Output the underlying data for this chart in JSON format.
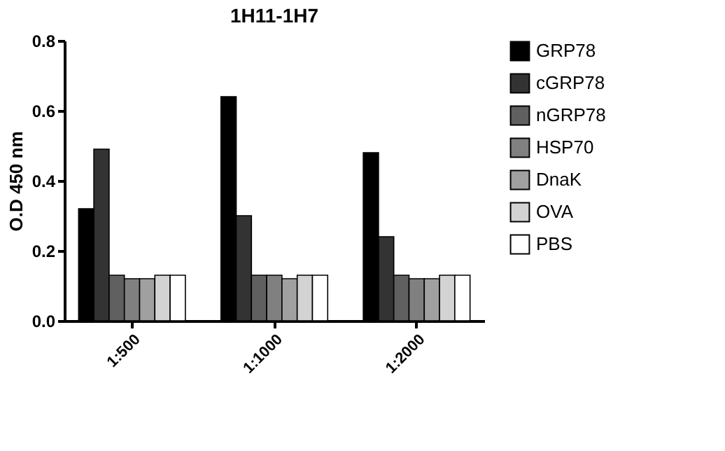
{
  "chart_data": {
    "type": "bar",
    "title": "1H11-1H7",
    "ylabel": "O.D 450 nm",
    "categories": [
      "1:500",
      "1:1000",
      "1:2000"
    ],
    "series": [
      {
        "name": "GRP78",
        "color": "#000000",
        "values": [
          0.32,
          0.64,
          0.48
        ]
      },
      {
        "name": "cGRP78",
        "color": "#333333",
        "values": [
          0.49,
          0.3,
          0.24
        ]
      },
      {
        "name": "nGRP78",
        "color": "#606060",
        "values": [
          0.13,
          0.13,
          0.13
        ]
      },
      {
        "name": "HSP70",
        "color": "#808080",
        "values": [
          0.12,
          0.13,
          0.12
        ]
      },
      {
        "name": "DnaK",
        "color": "#a0a0a0",
        "values": [
          0.12,
          0.12,
          0.12
        ]
      },
      {
        "name": "OVA",
        "color": "#d3d3d3",
        "values": [
          0.13,
          0.13,
          0.13
        ]
      },
      {
        "name": "PBS",
        "color": "#ffffff",
        "values": [
          0.13,
          0.13,
          0.13
        ]
      }
    ],
    "ylim": [
      0,
      0.8
    ],
    "yticks": [
      {
        "value": 0,
        "label": "0.0"
      },
      {
        "value": 0.2,
        "label": "0.2"
      },
      {
        "value": 0.4,
        "label": "0.4"
      },
      {
        "value": 0.6,
        "label": "0.6"
      },
      {
        "value": 0.8,
        "label": "0.8"
      }
    ],
    "grid": false,
    "legend": "right"
  }
}
